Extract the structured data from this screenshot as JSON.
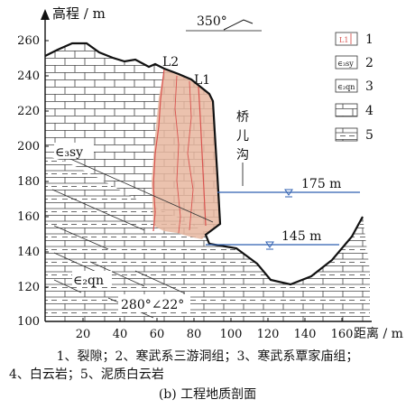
{
  "figure": {
    "y_axis_label": "高程 / m",
    "x_axis_label": "距离 / m",
    "orientation": "350°",
    "attitude": "280°∠22°",
    "x_ticks": [
      "20",
      "40",
      "60",
      "80",
      "100",
      "120",
      "140",
      "160"
    ],
    "y_ticks": [
      "100",
      "120",
      "140",
      "160",
      "180",
      "200",
      "220",
      "240",
      "260"
    ],
    "fracture_labels": [
      "L2",
      "L1"
    ],
    "formation_upper": "∈₃sy",
    "formation_lower": "∈₂qn",
    "gully_name": [
      "桥",
      "儿",
      "沟"
    ],
    "water_level_high": "175 m",
    "water_level_low": "145 m"
  },
  "legend": {
    "items": [
      {
        "number": "1",
        "symbol_text": "L1"
      },
      {
        "number": "2",
        "symbol_text": "∈₃sy"
      },
      {
        "number": "3",
        "symbol_text": "∈₂qn"
      },
      {
        "number": "4",
        "symbol_text": ""
      },
      {
        "number": "5",
        "symbol_text": ""
      }
    ]
  },
  "caption": {
    "line1": "1、裂隙；2、寒武系三游洞组；3、寒武系覃家庙组；",
    "line2": "4、白云岩；5、泥质白云岩",
    "title": "(b) 工程地质剖面"
  },
  "colors": {
    "rock_fill": "#f3ddd3",
    "fracture_line": "#d9534f",
    "water_line": "#2f5fb0",
    "ink": "#111111"
  }
}
